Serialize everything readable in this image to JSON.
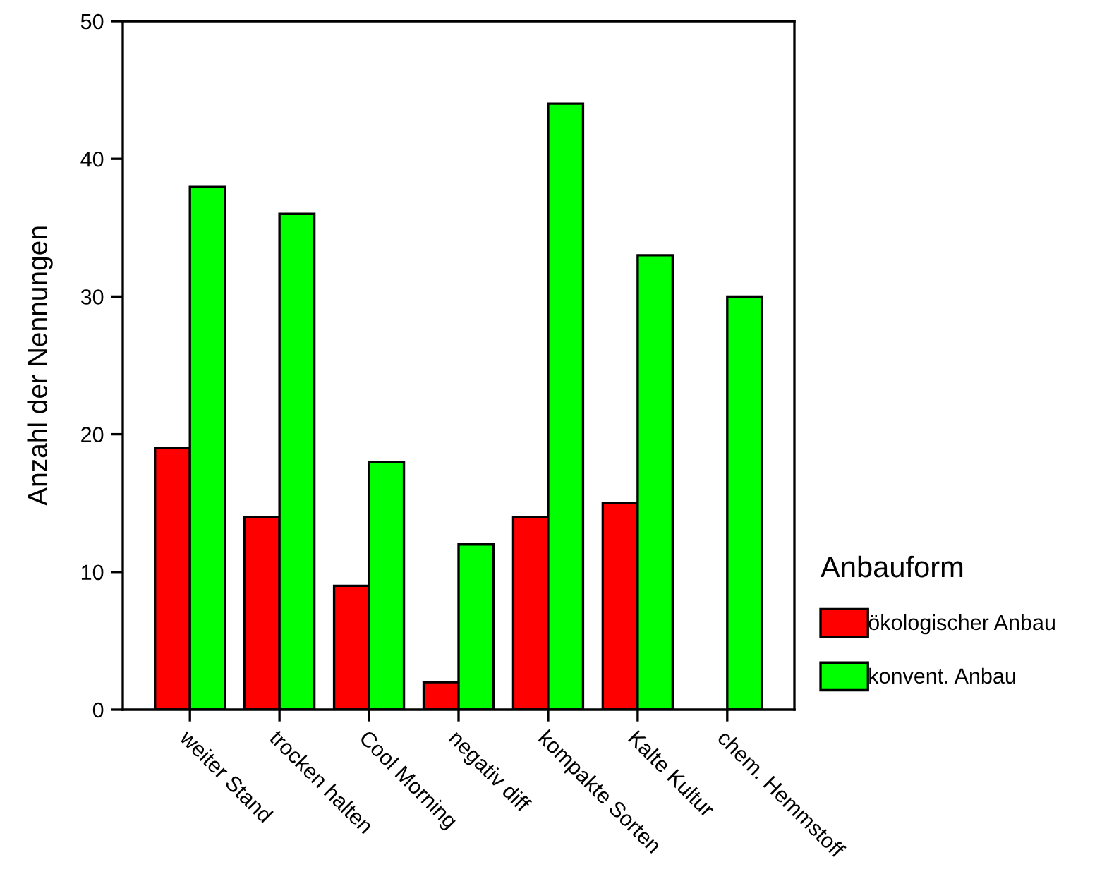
{
  "chart_data": {
    "type": "bar",
    "ylabel": "Anzahl der Nennungen",
    "legend_title": "Anbauform",
    "categories": [
      "weiter Stand",
      "trocken halten",
      "Cool Morning",
      "negativ diff",
      "kompakte Sorten",
      "Kalte Kultur",
      "chem. Hemmstoff"
    ],
    "series": [
      {
        "name": "ökologischer Anbau",
        "color": "#ff0000",
        "values": [
          19,
          14,
          9,
          2,
          14,
          15,
          null
        ]
      },
      {
        "name": "konvent. Anbau",
        "color": "#00ff00",
        "values": [
          38,
          36,
          18,
          12,
          44,
          33,
          30
        ]
      }
    ],
    "ylim": [
      0,
      50
    ],
    "yticks": [
      0,
      10,
      20,
      30,
      40,
      50
    ],
    "grid": false,
    "legend": "right"
  }
}
